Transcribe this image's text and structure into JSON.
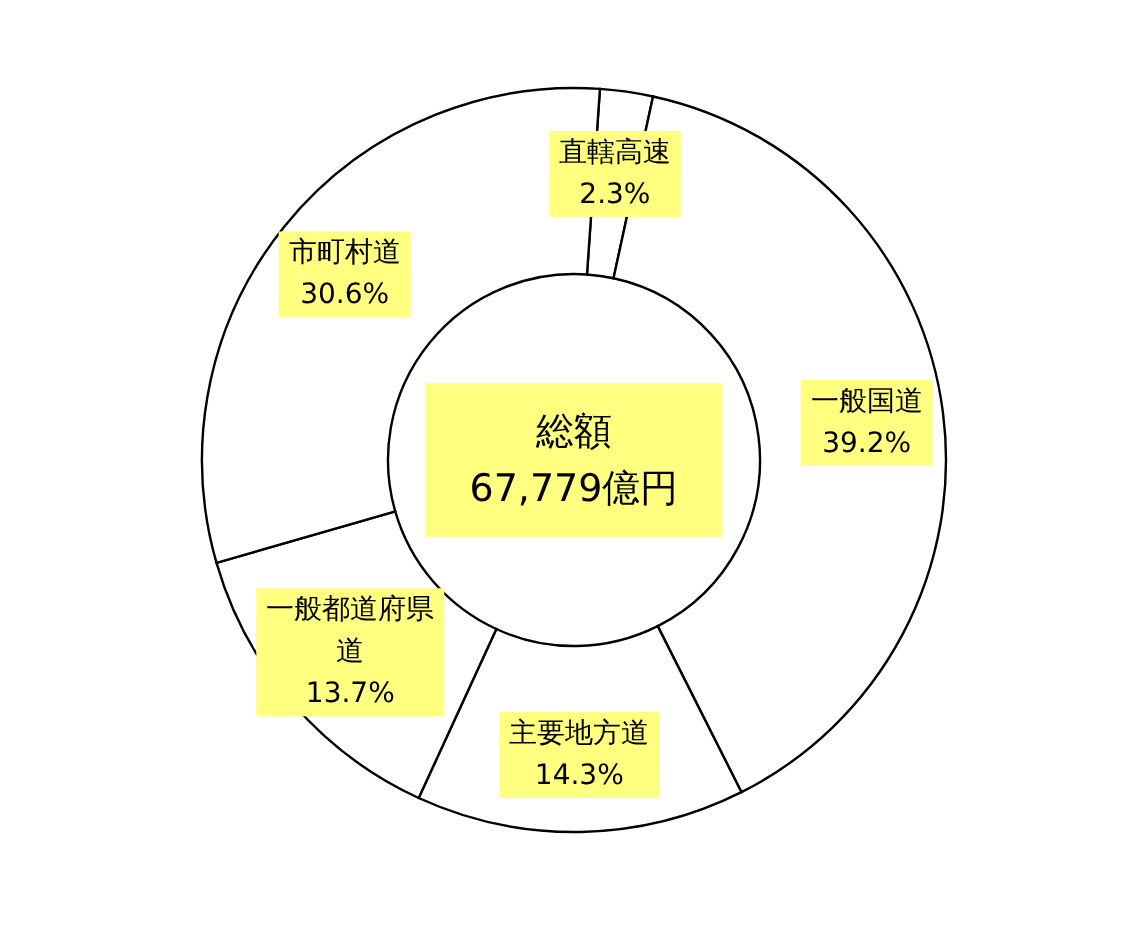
{
  "chart_data": {
    "type": "donut",
    "title": "総額",
    "subtitle": "67,779億円",
    "categories": [
      "直轄高速",
      "一般国道",
      "主要地方道",
      "一般都道府県道",
      "市町村道"
    ],
    "values": [
      2.3,
      39.2,
      14.3,
      13.7,
      30.6
    ],
    "colors": [
      "#ffffff",
      "#ffffff",
      "#ffffff",
      "#ffffff",
      "#ffffff"
    ],
    "value_labels": [
      "2.3%",
      "39.2%",
      "14.3%",
      "13.7%",
      "30.6%"
    ]
  }
}
